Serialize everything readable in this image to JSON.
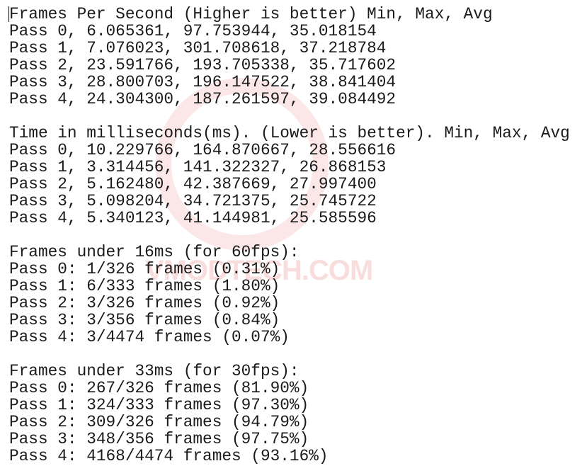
{
  "sections": [
    {
      "header": "Frames Per Second (Higher is better) Min, Max, Avg",
      "lines": [
        "Pass 0, 6.065361, 97.753944, 35.018154",
        "Pass 1, 7.076023, 301.708618, 37.218784",
        "Pass 2, 23.591766, 193.705338, 35.717602",
        "Pass 3, 28.800703, 196.147522, 38.841404",
        "Pass 4, 24.304300, 187.261597, 39.084492"
      ]
    },
    {
      "header": "Time in milliseconds(ms). (Lower is better). Min, Max, Avg",
      "lines": [
        "Pass 0, 10.229766, 164.870667, 28.556616",
        "Pass 1, 3.314456, 141.322327, 26.868153",
        "Pass 2, 5.162480, 42.387669, 27.997400",
        "Pass 3, 5.098204, 34.721375, 25.745722",
        "Pass 4, 5.340123, 41.144981, 25.585596"
      ]
    },
    {
      "header": "Frames under 16ms (for 60fps):",
      "lines": [
        "Pass 0: 1/326 frames (0.31%)",
        "Pass 1: 6/333 frames (1.80%)",
        "Pass 2: 3/326 frames (0.92%)",
        "Pass 3: 3/356 frames (0.84%)",
        "Pass 4: 3/4474 frames (0.07%)"
      ]
    },
    {
      "header": "Frames under 33ms (for 30fps):",
      "lines": [
        "Pass 0: 267/326 frames (81.90%)",
        "Pass 1: 324/333 frames (97.30%)",
        "Pass 2: 309/326 frames (94.79%)",
        "Pass 3: 348/356 frames (97.75%)",
        "Pass 4: 4168/4474 frames (93.16%)"
      ]
    }
  ],
  "watermark": "VMODTECH.COM"
}
